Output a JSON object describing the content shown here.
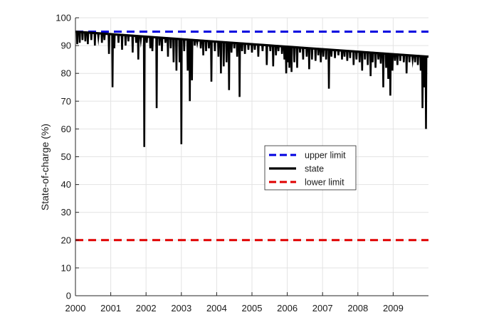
{
  "chart_data": {
    "type": "line",
    "title": "",
    "xlabel": "",
    "ylabel": "State-of-charge (%)",
    "xlim": [
      2000,
      2010
    ],
    "ylim": [
      0,
      100
    ],
    "x_ticks": [
      2000,
      2001,
      2002,
      2003,
      2004,
      2005,
      2006,
      2007,
      2008,
      2009
    ],
    "x_tick_labels": [
      "2000",
      "2001",
      "2002",
      "2003",
      "2004",
      "2005",
      "2006",
      "2007",
      "2008",
      "2009"
    ],
    "y_ticks": [
      0,
      10,
      20,
      30,
      40,
      50,
      60,
      70,
      80,
      90,
      100
    ],
    "y_tick_labels": [
      "0",
      "10",
      "20",
      "30",
      "40",
      "50",
      "60",
      "70",
      "80",
      "90",
      "100"
    ],
    "grid": true,
    "legend_position": "center-right",
    "series": [
      {
        "name": "upper limit",
        "style": "dashed",
        "color": "#0000e0",
        "x": [
          2000,
          2010
        ],
        "y": [
          95,
          95
        ]
      },
      {
        "name": "state",
        "style": "solid",
        "color": "#000000",
        "envelope": {
          "x": [
            2000,
            2010
          ],
          "y": [
            95,
            86
          ]
        },
        "dips": [
          [
            2000.05,
            90.5
          ],
          [
            2000.12,
            91
          ],
          [
            2000.2,
            92
          ],
          [
            2000.28,
            91.5
          ],
          [
            2000.35,
            90.5
          ],
          [
            2000.45,
            92
          ],
          [
            2000.55,
            90
          ],
          [
            2000.65,
            93
          ],
          [
            2000.75,
            91
          ],
          [
            2000.82,
            92
          ],
          [
            2000.95,
            87
          ],
          [
            2001.05,
            75
          ],
          [
            2001.1,
            89
          ],
          [
            2001.22,
            91
          ],
          [
            2001.32,
            88.5
          ],
          [
            2001.42,
            90
          ],
          [
            2001.5,
            91.5
          ],
          [
            2001.62,
            87.5
          ],
          [
            2001.72,
            91
          ],
          [
            2001.78,
            85
          ],
          [
            2001.85,
            92
          ],
          [
            2001.95,
            53.5
          ],
          [
            2002.02,
            91
          ],
          [
            2002.12,
            89
          ],
          [
            2002.18,
            88
          ],
          [
            2002.3,
            67.5
          ],
          [
            2002.38,
            90
          ],
          [
            2002.45,
            88
          ],
          [
            2002.55,
            91
          ],
          [
            2002.62,
            86
          ],
          [
            2002.7,
            89
          ],
          [
            2002.78,
            84
          ],
          [
            2002.86,
            81
          ],
          [
            2002.95,
            84
          ],
          [
            2003.0,
            54.5
          ],
          [
            2003.08,
            88
          ],
          [
            2003.18,
            81
          ],
          [
            2003.24,
            70
          ],
          [
            2003.3,
            77.5
          ],
          [
            2003.38,
            90
          ],
          [
            2003.45,
            91
          ],
          [
            2003.55,
            89
          ],
          [
            2003.62,
            86.5
          ],
          [
            2003.7,
            88
          ],
          [
            2003.78,
            89
          ],
          [
            2003.85,
            77
          ],
          [
            2003.95,
            88
          ],
          [
            2004.05,
            86
          ],
          [
            2004.12,
            80
          ],
          [
            2004.2,
            82.5
          ],
          [
            2004.28,
            84
          ],
          [
            2004.35,
            74
          ],
          [
            2004.42,
            87.5
          ],
          [
            2004.5,
            89
          ],
          [
            2004.58,
            86
          ],
          [
            2004.65,
            71.5
          ],
          [
            2004.72,
            88
          ],
          [
            2004.8,
            87
          ],
          [
            2004.9,
            88.5
          ],
          [
            2005.0,
            87.5
          ],
          [
            2005.08,
            88.5
          ],
          [
            2005.18,
            86
          ],
          [
            2005.3,
            88
          ],
          [
            2005.42,
            83
          ],
          [
            2005.52,
            88
          ],
          [
            2005.6,
            82.5
          ],
          [
            2005.68,
            86.5
          ],
          [
            2005.75,
            88
          ],
          [
            2005.85,
            87
          ],
          [
            2005.92,
            85
          ],
          [
            2005.97,
            80
          ],
          [
            2006.02,
            84
          ],
          [
            2006.06,
            82
          ],
          [
            2006.12,
            80.5
          ],
          [
            2006.2,
            84
          ],
          [
            2006.28,
            82
          ],
          [
            2006.36,
            87.5
          ],
          [
            2006.45,
            85
          ],
          [
            2006.55,
            86
          ],
          [
            2006.62,
            81.5
          ],
          [
            2006.7,
            85
          ],
          [
            2006.8,
            84.5
          ],
          [
            2006.88,
            86.5
          ],
          [
            2006.95,
            84
          ],
          [
            2007.02,
            86
          ],
          [
            2007.1,
            85
          ],
          [
            2007.18,
            74.5
          ],
          [
            2007.25,
            86
          ],
          [
            2007.35,
            85.5
          ],
          [
            2007.45,
            86.5
          ],
          [
            2007.55,
            85
          ],
          [
            2007.62,
            86
          ],
          [
            2007.7,
            84.5
          ],
          [
            2007.78,
            85.5
          ],
          [
            2007.88,
            83
          ],
          [
            2007.96,
            85
          ],
          [
            2008.05,
            84
          ],
          [
            2008.12,
            81
          ],
          [
            2008.2,
            85
          ],
          [
            2008.28,
            83
          ],
          [
            2008.36,
            79
          ],
          [
            2008.42,
            84
          ],
          [
            2008.5,
            82
          ],
          [
            2008.58,
            85
          ],
          [
            2008.65,
            83.5
          ],
          [
            2008.72,
            75
          ],
          [
            2008.8,
            82
          ],
          [
            2008.86,
            78
          ],
          [
            2008.92,
            72
          ],
          [
            2008.98,
            81
          ],
          [
            2009.05,
            84.5
          ],
          [
            2009.12,
            83
          ],
          [
            2009.2,
            84.5
          ],
          [
            2009.3,
            84
          ],
          [
            2009.38,
            80
          ],
          [
            2009.46,
            84
          ],
          [
            2009.55,
            85
          ],
          [
            2009.62,
            84
          ],
          [
            2009.7,
            83
          ],
          [
            2009.78,
            81
          ],
          [
            2009.83,
            67.5
          ],
          [
            2009.88,
            75
          ],
          [
            2009.93,
            60
          ]
        ]
      },
      {
        "name": "lower limit",
        "style": "dashed",
        "color": "#e00000",
        "x": [
          2000,
          2010
        ],
        "y": [
          20,
          20
        ]
      }
    ]
  }
}
